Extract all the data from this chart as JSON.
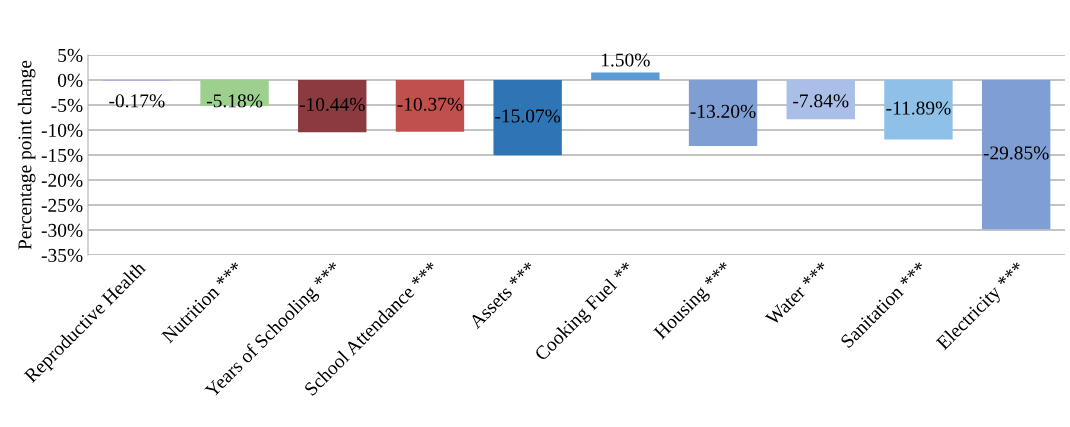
{
  "chart_data": {
    "type": "bar",
    "ylabel": "Percentage point change",
    "categories": [
      "Reproductive Health",
      "Nutrition ***",
      "Years of Schooling ***",
      "School Attendance ***",
      "Assets ***",
      "Cooking Fuel **",
      "Housing ***",
      "Water ***",
      "Sanitation ***",
      "Electricity ***"
    ],
    "values": [
      -0.17,
      -5.18,
      -10.44,
      -10.37,
      -15.07,
      1.5,
      -13.2,
      -7.84,
      -11.89,
      -29.85
    ],
    "colors": [
      "#b4a7d6",
      "#9dd08e",
      "#8b3a40",
      "#c0504d",
      "#2e75b6",
      "#5b9bd5",
      "#7f9fd4",
      "#a9bfe8",
      "#8fc0e8",
      "#7f9fd4"
    ],
    "value_labels": [
      "-0.17%",
      "-5.18%",
      "-10.44%",
      "-10.37%",
      "-15.07%",
      "1.50%",
      "-13.20%",
      "-7.84%",
      "-11.89%",
      "-29.85%"
    ],
    "ylim": [
      -35,
      5
    ],
    "yticks": [
      {
        "value": 5,
        "label": "5%"
      },
      {
        "value": 0,
        "label": "0%"
      },
      {
        "value": -5,
        "label": "-5%"
      },
      {
        "value": -10,
        "label": "-10%"
      },
      {
        "value": -15,
        "label": "-15%"
      },
      {
        "value": -20,
        "label": "-20%"
      },
      {
        "value": -25,
        "label": "-25%"
      },
      {
        "value": -30,
        "label": "-30%"
      },
      {
        "value": -35,
        "label": "-35%"
      }
    ],
    "grid": "y",
    "legend": false
  }
}
